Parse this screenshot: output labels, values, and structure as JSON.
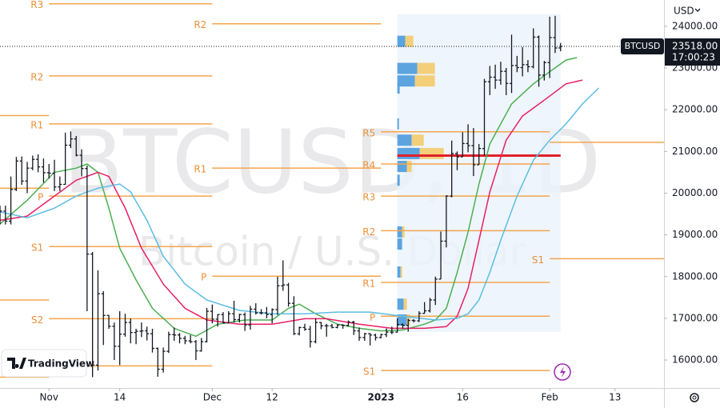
{
  "chart_data": {
    "type": "ohlc",
    "symbol": "BTCUSD",
    "watermark_title": "BTCUSD, 1D",
    "watermark_subtitle": "Bitcoin / U.S. Dollar",
    "brand": "TradingView",
    "currency": "USD",
    "countdown": "17:00:23",
    "last_price": {
      "value": 23518,
      "label": "23518.00"
    },
    "xlim": [
      0,
      122
    ],
    "ylim": [
      15330,
      24630
    ],
    "xticks": [
      {
        "value": 9,
        "label": "Nov"
      },
      {
        "value": 22,
        "label": "14"
      },
      {
        "value": 39,
        "label": "Dec"
      },
      {
        "value": 50,
        "label": "12"
      },
      {
        "value": 70,
        "label": "2023"
      },
      {
        "value": 85,
        "label": "16"
      },
      {
        "value": 101,
        "label": "Feb"
      },
      {
        "value": 113,
        "label": "13"
      }
    ],
    "yticks": [
      {
        "value": 16000,
        "label": "16000.00"
      },
      {
        "value": 17000,
        "label": "17000.00"
      },
      {
        "value": 18000,
        "label": "18000.00"
      },
      {
        "value": 19000,
        "label": "19000.00"
      },
      {
        "value": 20000,
        "label": "20000.00"
      },
      {
        "value": 21000,
        "label": "21000.00"
      },
      {
        "value": 22000,
        "label": "22000.00"
      },
      {
        "value": 23000,
        "label": "23000.00"
      },
      {
        "value": 24000,
        "label": "24000.00"
      }
    ],
    "bar_color": "#131722",
    "bars": [
      [
        19400,
        19700,
        19250,
        19570
      ],
      [
        19570,
        19700,
        19250,
        19330
      ],
      [
        19330,
        20400,
        19250,
        20090
      ],
      [
        20090,
        20870,
        20050,
        20770
      ],
      [
        20770,
        20880,
        20200,
        20290
      ],
      [
        20290,
        20750,
        20000,
        20600
      ],
      [
        20600,
        20900,
        20550,
        20810
      ],
      [
        20810,
        20930,
        20500,
        20630
      ],
      [
        20630,
        20830,
        20250,
        20490
      ],
      [
        20490,
        20700,
        20350,
        20480
      ],
      [
        20480,
        20800,
        20050,
        20150
      ],
      [
        20150,
        20400,
        20050,
        20210
      ],
      [
        20210,
        21450,
        20200,
        21150
      ],
      [
        21150,
        21480,
        21080,
        21300
      ],
      [
        21300,
        21370,
        20880,
        20910
      ],
      [
        20910,
        21050,
        20400,
        20590
      ],
      [
        20590,
        20660,
        17170,
        18540
      ],
      [
        18540,
        18590,
        15590,
        15880
      ],
      [
        15880,
        18150,
        15750,
        17590
      ],
      [
        17590,
        17650,
        16360,
        17070
      ],
      [
        17070,
        17080,
        16750,
        16810
      ],
      [
        16810,
        16900,
        16000,
        16330
      ],
      [
        16330,
        17170,
        15880,
        16620
      ],
      [
        16620,
        17110,
        16560,
        16900
      ],
      [
        16900,
        17000,
        16400,
        16660
      ],
      [
        16660,
        16750,
        16380,
        16690
      ],
      [
        16690,
        16900,
        16550,
        16700
      ],
      [
        16700,
        16800,
        16470,
        16630
      ],
      [
        16630,
        16750,
        16180,
        16280
      ],
      [
        16280,
        16300,
        15600,
        15780
      ],
      [
        15780,
        16300,
        15700,
        16210
      ],
      [
        16210,
        16680,
        16170,
        16610
      ],
      [
        16610,
        16780,
        16460,
        16600
      ],
      [
        16600,
        16650,
        16400,
        16520
      ],
      [
        16520,
        16580,
        16380,
        16460
      ],
      [
        16460,
        16600,
        16400,
        16440
      ],
      [
        16440,
        16480,
        16000,
        16220
      ],
      [
        16220,
        16530,
        16200,
        16440
      ],
      [
        16440,
        17250,
        16420,
        17170
      ],
      [
        17170,
        17330,
        16880,
        16980
      ],
      [
        16980,
        17100,
        16800,
        17090
      ],
      [
        17090,
        17150,
        16880,
        16890
      ],
      [
        16890,
        17170,
        16880,
        17110
      ],
      [
        17110,
        17420,
        16900,
        16970
      ],
      [
        16970,
        17110,
        16900,
        17090
      ],
      [
        17090,
        17140,
        16700,
        16840
      ],
      [
        16840,
        17300,
        16730,
        17220
      ],
      [
        17220,
        17360,
        17090,
        17130
      ],
      [
        17130,
        17220,
        17090,
        17130
      ],
      [
        17130,
        17270,
        17000,
        17090
      ],
      [
        17090,
        17240,
        16880,
        17210
      ],
      [
        17210,
        18000,
        17080,
        17780
      ],
      [
        17780,
        18390,
        17660,
        17800
      ],
      [
        17800,
        17850,
        17280,
        17360
      ],
      [
        17360,
        17530,
        16600,
        16630
      ],
      [
        16630,
        16800,
        16590,
        16780
      ],
      [
        16780,
        16870,
        16700,
        16740
      ],
      [
        16740,
        16820,
        16300,
        16440
      ],
      [
        16440,
        17000,
        16400,
        16900
      ],
      [
        16900,
        16910,
        16740,
        16820
      ],
      [
        16820,
        16870,
        16560,
        16820
      ],
      [
        16820,
        16870,
        16760,
        16780
      ],
      [
        16780,
        16860,
        16760,
        16840
      ],
      [
        16840,
        16860,
        16750,
        16830
      ],
      [
        16830,
        16950,
        16800,
        16910
      ],
      [
        16910,
        16940,
        16600,
        16700
      ],
      [
        16700,
        16780,
        16460,
        16540
      ],
      [
        16540,
        16650,
        16460,
        16630
      ],
      [
        16630,
        16650,
        16350,
        16600
      ],
      [
        16600,
        16630,
        16470,
        16540
      ],
      [
        16540,
        16630,
        16520,
        16610
      ],
      [
        16610,
        16760,
        16550,
        16670
      ],
      [
        16670,
        16800,
        16620,
        16670
      ],
      [
        16670,
        17000,
        16660,
        16850
      ],
      [
        16850,
        16880,
        16750,
        16830
      ],
      [
        16830,
        16990,
        16680,
        16950
      ],
      [
        16950,
        16980,
        16900,
        16940
      ],
      [
        16940,
        17170,
        16910,
        17120
      ],
      [
        17120,
        17390,
        17110,
        17180
      ],
      [
        17180,
        17490,
        17140,
        17440
      ],
      [
        17440,
        18000,
        17320,
        17940
      ],
      [
        17940,
        19080,
        17940,
        18850
      ],
      [
        18850,
        19950,
        18700,
        19930
      ],
      [
        19930,
        21260,
        19900,
        20950
      ],
      [
        20950,
        21000,
        20550,
        20870
      ],
      [
        20870,
        21460,
        20870,
        21190
      ],
      [
        21190,
        21650,
        20980,
        21140
      ],
      [
        21140,
        21560,
        20410,
        20680
      ],
      [
        20680,
        21180,
        20680,
        21070
      ],
      [
        21070,
        22740,
        20900,
        22670
      ],
      [
        22670,
        23050,
        22350,
        22780
      ],
      [
        22780,
        23080,
        22500,
        22710
      ],
      [
        22710,
        23150,
        22600,
        22920
      ],
      [
        22920,
        23000,
        22350,
        22630
      ],
      [
        22630,
        23800,
        22400,
        23060
      ],
      [
        23060,
        23290,
        22900,
        23010
      ],
      [
        23010,
        23500,
        22800,
        23080
      ],
      [
        23080,
        23190,
        22900,
        23030
      ],
      [
        23030,
        23950,
        22990,
        23740
      ],
      [
        23740,
        23780,
        22550,
        22830
      ],
      [
        22830,
        23170,
        22700,
        23130
      ],
      [
        23130,
        24230,
        22760,
        23730
      ],
      [
        23730,
        24250,
        23360,
        23480
      ],
      [
        23480,
        23600,
        23400,
        23518
      ]
    ],
    "moving_averages": [
      {
        "color": "#4caf50",
        "x": [
          0,
          5,
          10,
          14,
          16,
          18,
          20,
          22,
          25,
          28,
          32,
          36,
          40,
          45,
          50,
          53,
          55,
          58,
          62,
          66,
          70,
          74,
          78,
          80,
          82,
          84,
          86,
          88,
          90,
          94,
          98,
          101,
          104,
          106
        ],
        "values": [
          19260,
          19830,
          20500,
          20600,
          20700,
          20500,
          19640,
          18680,
          17920,
          17240,
          16760,
          16570,
          16860,
          16960,
          16960,
          17240,
          17340,
          17110,
          16860,
          16760,
          16700,
          16720,
          16860,
          16960,
          17240,
          18100,
          19070,
          20220,
          21180,
          22140,
          22620,
          22910,
          23190,
          23250
        ]
      },
      {
        "color": "#e91e63",
        "x": [
          0,
          5,
          10,
          14,
          18,
          20,
          23,
          26,
          30,
          34,
          38,
          44,
          50,
          56,
          60,
          66,
          72,
          78,
          82,
          84,
          86,
          88,
          90,
          93,
          96,
          100,
          104,
          107
        ],
        "values": [
          19350,
          19450,
          19930,
          20310,
          20500,
          20400,
          19640,
          18680,
          17820,
          17240,
          16960,
          16860,
          16860,
          16990,
          16990,
          16860,
          16760,
          16760,
          16800,
          17050,
          17720,
          18870,
          20030,
          21270,
          21850,
          22230,
          22620,
          22710
        ]
      },
      {
        "color": "#5bbde4",
        "x": [
          0,
          5,
          10,
          14,
          18,
          22,
          24,
          27,
          30,
          34,
          38,
          44,
          50,
          56,
          62,
          68,
          74,
          80,
          84,
          86,
          88,
          90,
          92,
          95,
          98,
          101,
          104,
          107,
          110
        ],
        "values": [
          19550,
          19410,
          19640,
          19930,
          20120,
          20220,
          20030,
          19350,
          18490,
          17820,
          17440,
          17190,
          17110,
          17110,
          17150,
          17150,
          17050,
          16960,
          17000,
          17110,
          17440,
          18100,
          18870,
          19930,
          20790,
          21270,
          21660,
          22140,
          22520
        ]
      }
    ],
    "pivot_color": "#f5a54e",
    "pivots": [
      {
        "from": 0,
        "to": 9,
        "levels": [
          {
            "value": 21860
          },
          {
            "value": 20120
          },
          {
            "value": 17440
          },
          {
            "value": 15590
          }
        ]
      },
      {
        "from": 9,
        "to": 39,
        "levels": [
          {
            "label": "R3",
            "value": 24540
          },
          {
            "label": "R2",
            "value": 22810
          },
          {
            "label": "R1",
            "value": 21660
          },
          {
            "label": "P",
            "value": 19930
          },
          {
            "label": "S1",
            "value": 18720
          },
          {
            "label": "S2",
            "value": 16990
          },
          {
            "value": 15860
          }
        ]
      },
      {
        "from": 39,
        "to": 70,
        "levels": [
          {
            "label": "R2",
            "value": 24060
          },
          {
            "label": "R1",
            "value": 20600
          },
          {
            "label": "P",
            "value": 18010
          }
        ]
      },
      {
        "from": 70,
        "to": 101,
        "levels": [
          {
            "label": "R5",
            "value": 21470
          },
          {
            "label": "R4",
            "value": 20700
          },
          {
            "label": "R3",
            "value": 19930
          },
          {
            "label": "R2",
            "value": 19100
          },
          {
            "label": "R1",
            "value": 17860
          },
          {
            "label": "P",
            "value": 17050
          },
          {
            "label": "S1",
            "value": 15750
          }
        ]
      },
      {
        "from": 101,
        "to": 122,
        "levels": [
          {
            "label": "S1",
            "value": 18430
          },
          {
            "value": 21220
          }
        ]
      }
    ],
    "volume_profile": {
      "from": 73,
      "to": 103,
      "price_range": [
        16670,
        24290
      ],
      "poc": 20900,
      "up_color": "#5ba4e0",
      "down_color": "#f3cf7a",
      "rows": [
        {
          "price": 23640,
          "up": 10,
          "down": 10
        },
        {
          "price": 22990,
          "up": 25,
          "down": 22
        },
        {
          "price": 22690,
          "up": 22,
          "down": 25
        },
        {
          "price": 22520,
          "up": 3,
          "down": 0
        },
        {
          "price": 21660,
          "up": 2,
          "down": 0
        },
        {
          "price": 21270,
          "up": 18,
          "down": 15
        },
        {
          "price": 20950,
          "up": 28,
          "down": 30
        },
        {
          "price": 20640,
          "up": 12,
          "down": 6
        },
        {
          "price": 20310,
          "up": 3,
          "down": 0
        },
        {
          "price": 19070,
          "up": 6,
          "down": 3
        },
        {
          "price": 18780,
          "up": 6,
          "down": 0
        },
        {
          "price": 18110,
          "up": 4,
          "down": 2
        },
        {
          "price": 17340,
          "up": 8,
          "down": 4
        },
        {
          "price": 16960,
          "up": 12,
          "down": 4
        }
      ]
    }
  }
}
